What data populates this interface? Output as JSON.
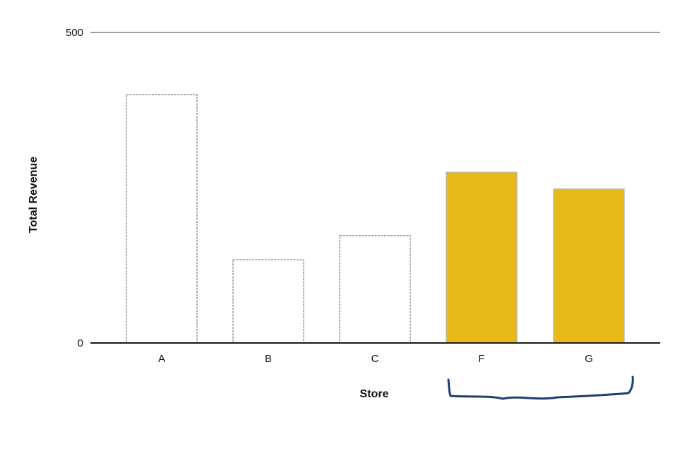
{
  "chart_data": {
    "type": "bar",
    "categories": [
      "A",
      "B",
      "C",
      "F",
      "G"
    ],
    "values": [
      400,
      134,
      173,
      275,
      248
    ],
    "highlighted": [
      "F",
      "G"
    ],
    "highlight_color": "#e6b818",
    "bar_outline_color": "#8f8f8f",
    "xlabel": "Store",
    "ylabel": "Total Revenue",
    "ylim": [
      0,
      500
    ],
    "yticks": [
      "0",
      "500"
    ],
    "grid": "horizontal line at top value only",
    "annotation": "hand-drawn blue bracket under F and G",
    "annotation_color": "#1e3f6e"
  }
}
